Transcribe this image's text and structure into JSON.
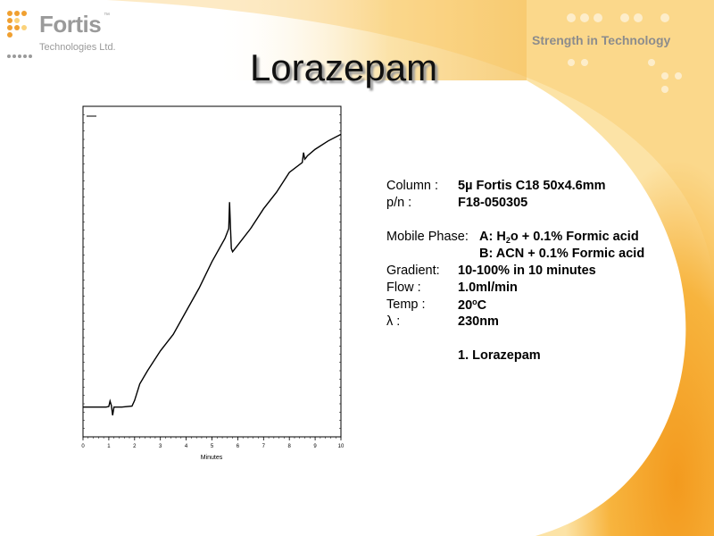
{
  "header": {
    "logo_name": "Fortis",
    "logo_tm": "™",
    "logo_sub": "Technologies Ltd.",
    "tagline": "Strength in Technology",
    "icon": "fortis-dot-grid-logo"
  },
  "title": "Lorazepam",
  "colors": {
    "accent": "#f0a030",
    "accent_light": "#fbd27a",
    "text_gray": "#9a9a9a"
  },
  "info": {
    "column_label": "Column :",
    "column_value_pre": "5",
    "column_value_mu": "µ",
    "column_value_post": " Fortis C18 50x4.6mm",
    "pn_label": "p/n :",
    "pn_value": "F18-050305",
    "mobile_label": "Mobile Phase:",
    "mobile_a_pre": "A: H",
    "mobile_a_sub": "2",
    "mobile_a_post": "o + 0.1% Formic acid",
    "mobile_b": "B: ACN + 0.1% Formic acid",
    "gradient_label": "Gradient:",
    "gradient_value": "10-100% in 10 minutes",
    "flow_label": "Flow :",
    "flow_value": "1.0ml/min",
    "temp_label": "Temp :",
    "temp_value_pre": "20",
    "temp_value_sup": "o",
    "temp_value_post": "C",
    "lambda_label": "λ :",
    "lambda_value": "230nm",
    "peak_1": "1. Lorazepam"
  },
  "chart_data": {
    "type": "line",
    "xlabel": "Minutes",
    "ylabel": "",
    "title": "",
    "xlim": [
      0,
      10
    ],
    "ylim": [
      0,
      100
    ],
    "xticks": [
      "0",
      "1",
      "2",
      "3",
      "4",
      "5",
      "6",
      "7",
      "8",
      "9",
      "10"
    ],
    "series": [
      {
        "x": [
          0,
          0.9,
          1.0,
          1.05,
          1.1,
          1.15,
          1.2,
          1.3,
          1.5,
          1.9,
          2.0,
          2.2,
          2.5,
          3.0,
          3.5,
          4.0,
          4.5,
          5.0,
          5.5,
          5.65,
          5.68,
          5.72,
          5.75,
          5.8,
          6.0,
          6.5,
          7.0,
          7.5,
          8.0,
          8.5,
          8.55,
          8.6,
          8.65,
          8.7,
          9.0,
          9.5,
          10.0
        ],
        "y": [
          9,
          9,
          9.2,
          10.8,
          9.5,
          6.5,
          9,
          9,
          9,
          9.3,
          11,
          16,
          20,
          26,
          31,
          38,
          45,
          53,
          60,
          63,
          71,
          63,
          57,
          56,
          58,
          63,
          69,
          74,
          80,
          83,
          86,
          84,
          84.5,
          85,
          87,
          89.5,
          91.5
        ]
      }
    ],
    "grid": false
  }
}
